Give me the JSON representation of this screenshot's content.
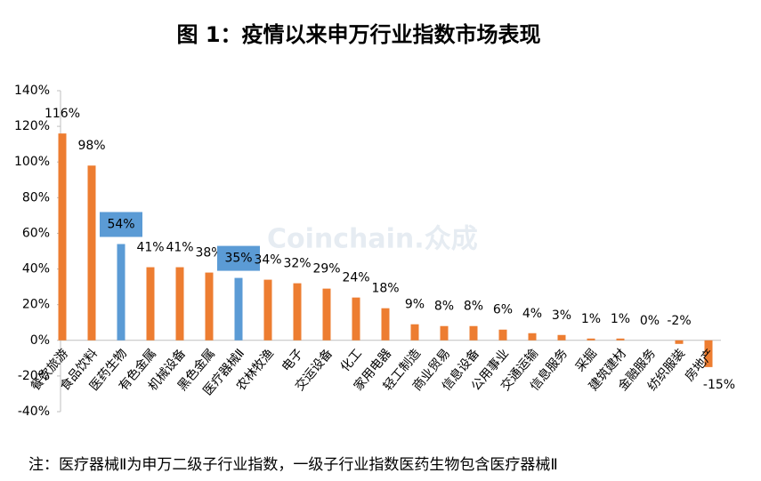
{
  "chart_data": {
    "type": "bar",
    "title": "图 1：疫情以来申万行业指数市场表现",
    "note": "注：医疗器械Ⅱ为申万二级子行业指数，一级子行业指数医药生物包含医疗器械Ⅱ",
    "watermark": "Coinchain.众成",
    "categories": [
      "餐饮旅游",
      "食品饮料",
      "医药生物",
      "有色金属",
      "机械设备",
      "黑色金属",
      "医疗器械Ⅱ",
      "农林牧渔",
      "电子",
      "交运设备",
      "化工",
      "家用电器",
      "轻工制造",
      "商业贸易",
      "信息设备",
      "公用事业",
      "交通运输",
      "信息服务",
      "采掘",
      "建筑建材",
      "金融服务",
      "纺织服装",
      "房地产"
    ],
    "values": [
      116,
      98,
      54,
      41,
      41,
      38,
      35,
      34,
      32,
      29,
      24,
      18,
      9,
      8,
      8,
      6,
      4,
      3,
      1,
      1,
      0,
      -2,
      -15
    ],
    "value_labels": [
      "116%",
      "98%",
      "54%",
      "41%",
      "41%",
      "38%",
      "35%",
      "34%",
      "32%",
      "29%",
      "24%",
      "18%",
      "9%",
      "8%",
      "8%",
      "6%",
      "4%",
      "3%",
      "1%",
      "1%",
      "0%",
      "-2%",
      "-15%"
    ],
    "color": "#ed7d31",
    "colors": [
      "#ed7d31",
      "#ed7d31",
      "#5b9bd5",
      "#ed7d31",
      "#ed7d31",
      "#ed7d31",
      "#5b9bd5",
      "#ed7d31",
      "#ed7d31",
      "#ed7d31",
      "#ed7d31",
      "#ed7d31",
      "#ed7d31",
      "#ed7d31",
      "#ed7d31",
      "#ed7d31",
      "#ed7d31",
      "#ed7d31",
      "#ed7d31",
      "#ed7d31",
      "#ed7d31",
      "#ed7d31",
      "#ed7d31"
    ],
    "ylim": [
      -40,
      140
    ],
    "yticks": [
      {
        "value": -40,
        "label": "-40%"
      },
      {
        "value": -20,
        "label": "-20%"
      },
      {
        "value": 0,
        "label": "0%"
      },
      {
        "value": 20,
        "label": "20%"
      },
      {
        "value": 40,
        "label": "40%"
      },
      {
        "value": 60,
        "label": "60%"
      },
      {
        "value": 80,
        "label": "80%"
      },
      {
        "value": 100,
        "label": "100%"
      },
      {
        "value": 120,
        "label": "120%"
      },
      {
        "value": 140,
        "label": "140%"
      }
    ],
    "grid": false
  }
}
